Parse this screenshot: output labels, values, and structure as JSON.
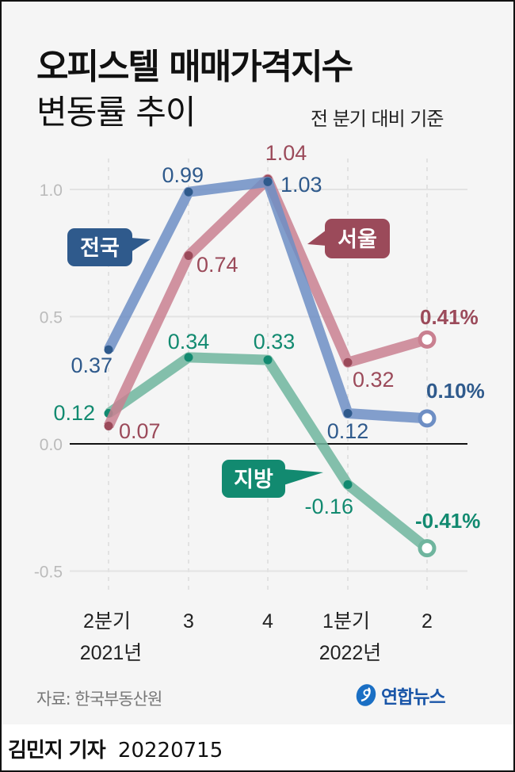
{
  "header": {
    "title": "오피스텔 매매가격지수",
    "subtitle": "변동률 추이",
    "basis": "전 분기 대비 기준"
  },
  "chart_data": {
    "type": "line",
    "title": "오피스텔 매매가격지수 변동률 추이",
    "subtitle": "전 분기 대비 기준",
    "categories": [
      "2분기 2021년",
      "3",
      "4",
      "1분기 2022년",
      "2"
    ],
    "x_tick_labels": [
      {
        "line1": "2분기",
        "line2": "2021년"
      },
      {
        "line1": "3",
        "line2": ""
      },
      {
        "line1": "4",
        "line2": ""
      },
      {
        "line1": "1분기",
        "line2": "2022년"
      },
      {
        "line1": "2",
        "line2": ""
      }
    ],
    "y_ticks": [
      "1.0",
      "0.5",
      "0.0",
      "-0.5"
    ],
    "ylim": [
      -0.5,
      1.0
    ],
    "xlabel": "",
    "ylabel": "",
    "grid": true,
    "series": [
      {
        "name": "전국",
        "values": [
          0.37,
          0.99,
          1.03,
          0.12,
          0.1
        ],
        "labels": [
          "0.37",
          "0.99",
          "1.03",
          "0.12",
          "0.10%"
        ],
        "line_color": "#6d8ec4",
        "text_color": "#2f5a8c"
      },
      {
        "name": "서울",
        "values": [
          0.07,
          0.74,
          1.04,
          0.32,
          0.41
        ],
        "labels": [
          "0.07",
          "0.74",
          "1.04",
          "0.32",
          "0.41%"
        ],
        "line_color": "#c98090",
        "text_color": "#9b4a5a"
      },
      {
        "name": "지방",
        "values": [
          0.12,
          0.34,
          0.33,
          -0.16,
          -0.41
        ],
        "labels": [
          "0.12",
          "0.34",
          "0.33",
          "-0.16",
          "-0.41%"
        ],
        "line_color": "#6fb59e",
        "text_color": "#128a70"
      }
    ],
    "legend": "callout bubbles next to lines"
  },
  "footer": {
    "source": "자료: 한국부동산원",
    "logo_text": "연합뉴스",
    "reporter": "김민지 기자",
    "date": "20220715"
  }
}
